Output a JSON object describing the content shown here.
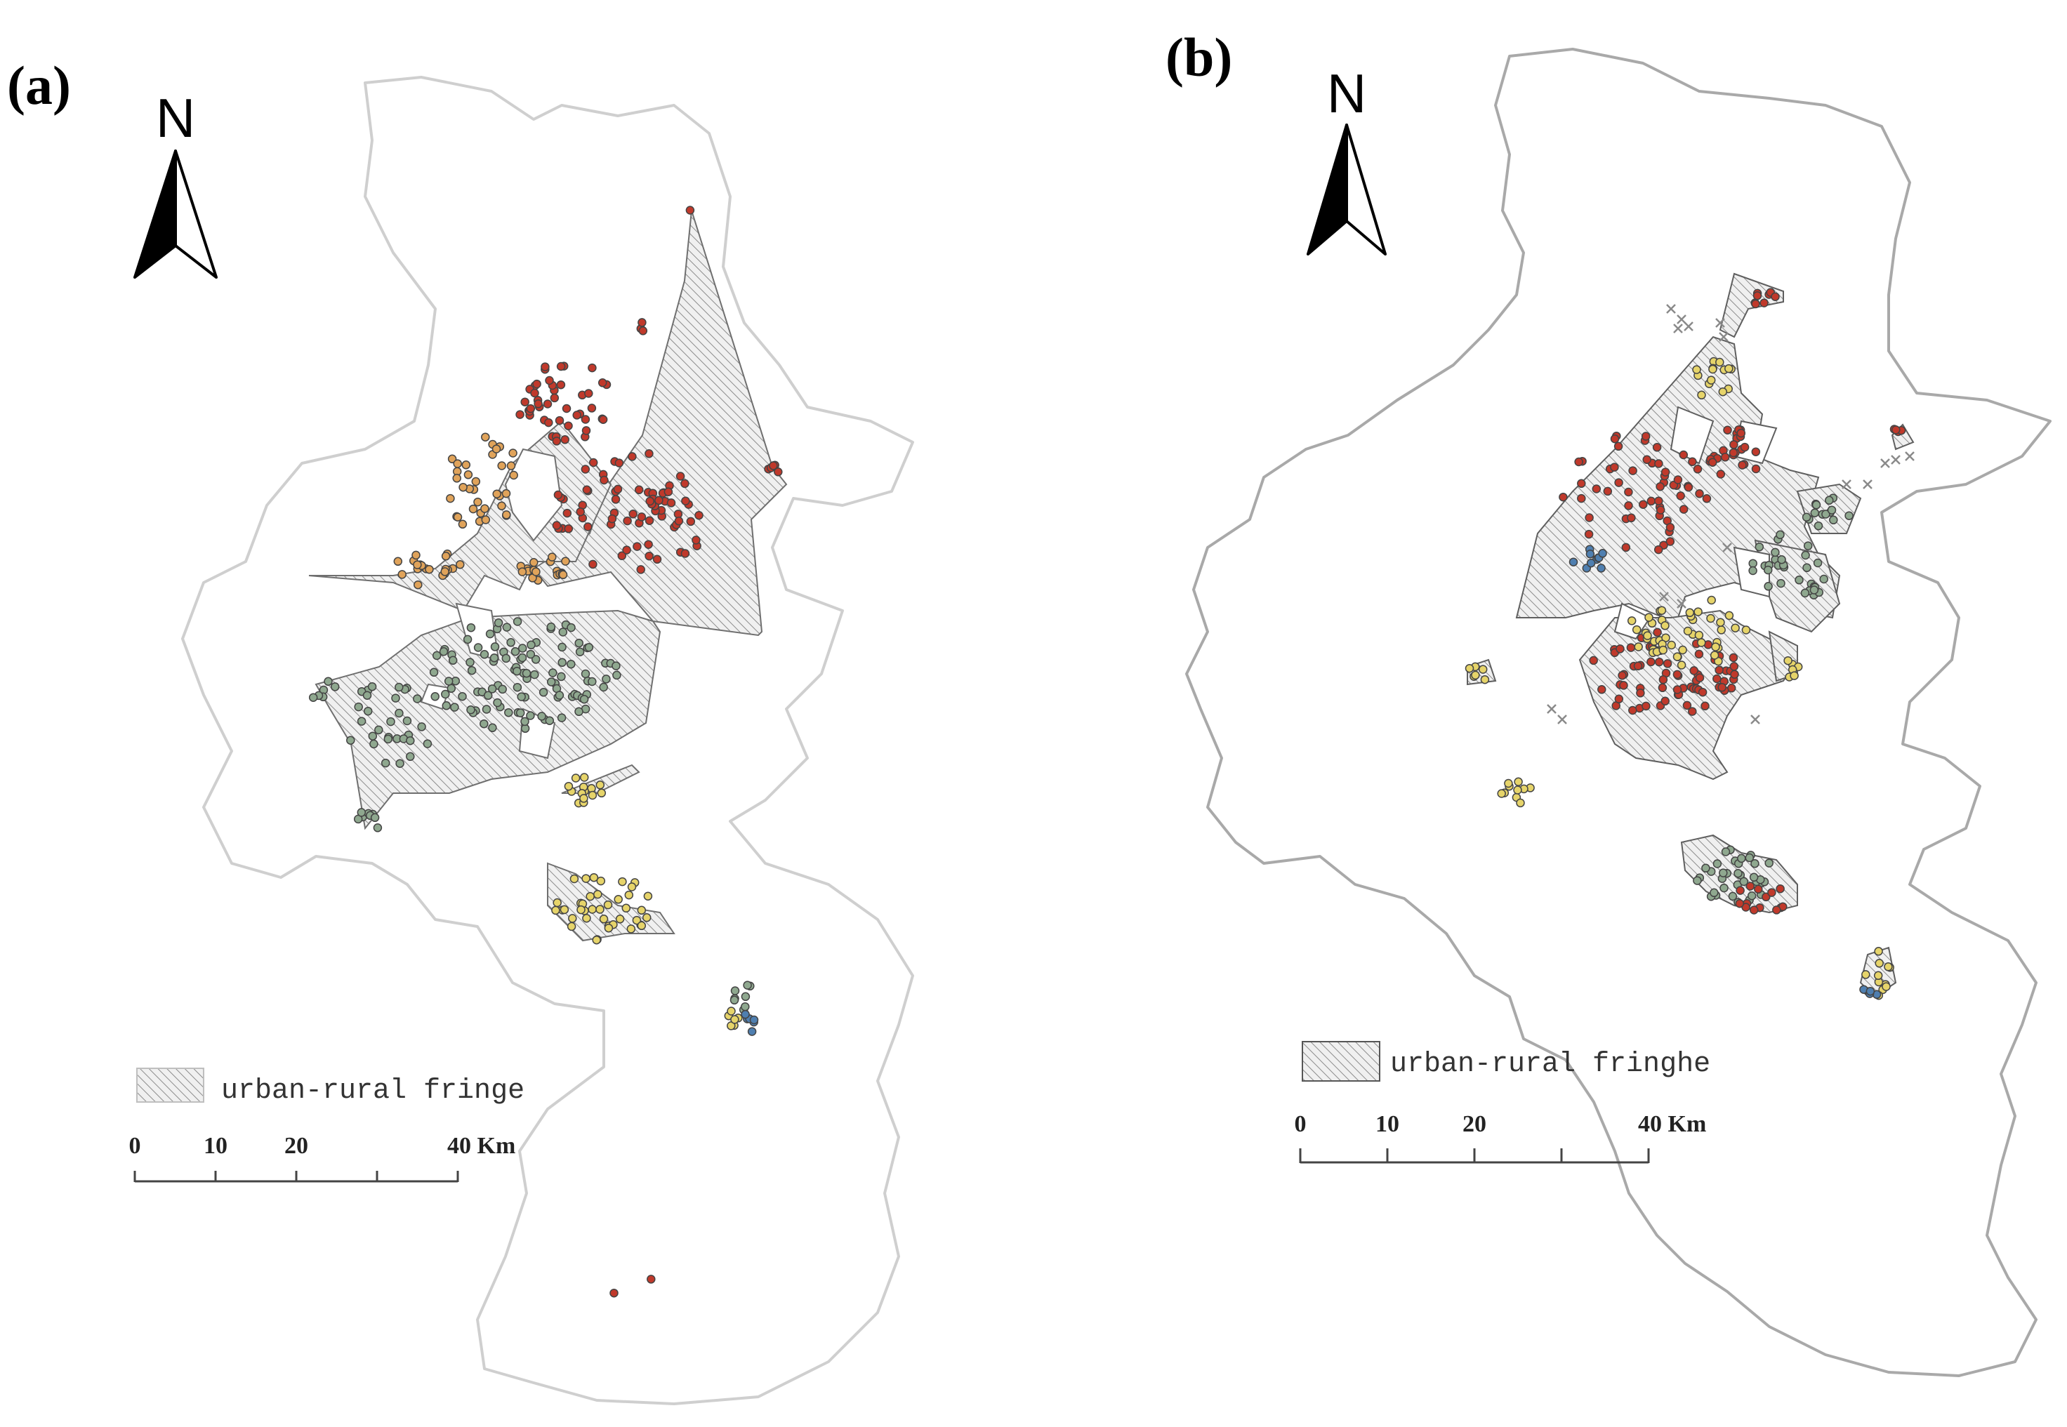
{
  "panels": [
    {
      "id": "a",
      "label": "(a)",
      "north_label": "N",
      "legend_label": "urban-rural fringe",
      "scale_ticks": [
        "0",
        "10",
        "20",
        "40 Km"
      ],
      "boundary_color": "#cfcfcf"
    },
    {
      "id": "b",
      "label": "(b)",
      "north_label": "N",
      "legend_label": "urban-rural fringhe",
      "scale_ticks": [
        "0",
        "10",
        "20",
        "40 Km"
      ],
      "boundary_color": "#a9a9a9"
    }
  ],
  "point_colors": {
    "red": "#c0392b",
    "orange": "#e0a35a",
    "green": "#8fa88f",
    "yellow": "#e6d46a",
    "blue": "#4f7fb0",
    "cross": "#8a8a8a"
  },
  "fringe_fill": "hatched-grey",
  "north_arrow_icon": "north-arrow-icon"
}
